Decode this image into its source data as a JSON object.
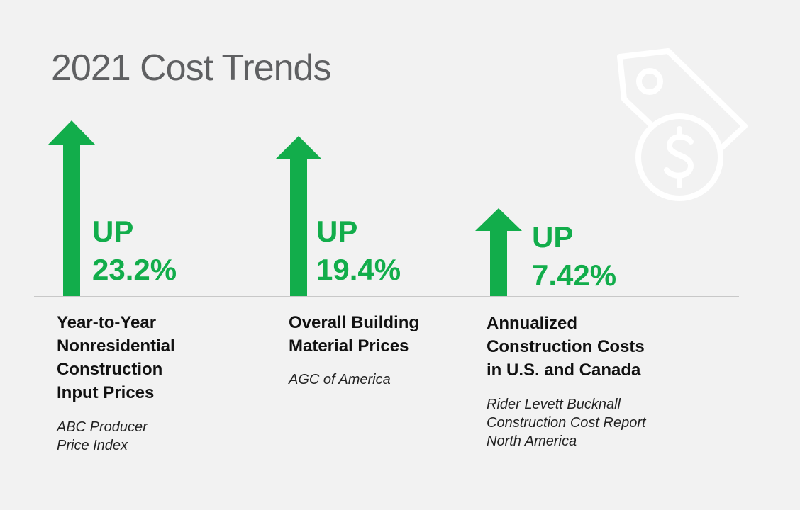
{
  "title": "2021 Cost Trends",
  "icons": {
    "decoration": "price-tag-dollar-icon",
    "indicator": "up-arrow-icon"
  },
  "colors": {
    "accent": "#12ad4b",
    "title": "#5f6062",
    "background": "#f2f2f2"
  },
  "stats": [
    {
      "direction": "UP",
      "value": "23.2%",
      "label_lines": [
        "Year-to-Year",
        "Nonresidential",
        "Construction",
        "Input Prices"
      ],
      "source_lines": [
        "ABC Producer",
        "Price Index"
      ]
    },
    {
      "direction": "UP",
      "value": "19.4%",
      "label_lines": [
        "Overall Building",
        "Material Prices"
      ],
      "source_lines": [
        "AGC of America"
      ]
    },
    {
      "direction": "UP",
      "value": "7.42%",
      "label_lines": [
        "Annualized",
        "Construction Costs",
        "in U.S. and Canada"
      ],
      "source_lines": [
        "Rider Levett Bucknall",
        "Construction Cost Report",
        "North America"
      ]
    }
  ]
}
